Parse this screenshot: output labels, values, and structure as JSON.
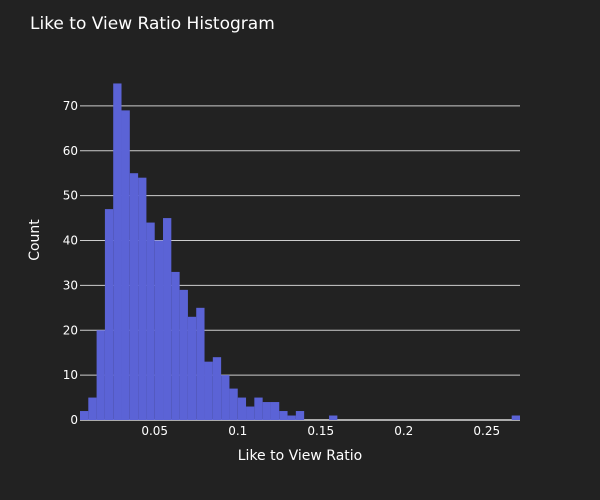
{
  "chart_data": {
    "type": "bar",
    "title": "Like to View Ratio Histogram",
    "xlabel": "Like to View Ratio",
    "ylabel": "Count",
    "bar_color": "#5b63d6",
    "background": "#222222",
    "grid": "y",
    "bin_width": 0.005,
    "xlim": [
      0.005,
      0.27
    ],
    "ylim": [
      0,
      78
    ],
    "x_ticks": [
      0.05,
      0.1,
      0.15,
      0.2,
      0.25
    ],
    "x_tick_labels": [
      "0.05",
      "0.1",
      "0.15",
      "0.2",
      "0.25"
    ],
    "y_ticks": [
      0,
      10,
      20,
      30,
      40,
      50,
      60,
      70
    ],
    "y_tick_labels": [
      "0",
      "10",
      "20",
      "30",
      "40",
      "50",
      "60",
      "70"
    ],
    "bins": [
      {
        "x": 0.005,
        "count": 2
      },
      {
        "x": 0.01,
        "count": 5
      },
      {
        "x": 0.015,
        "count": 20
      },
      {
        "x": 0.02,
        "count": 47
      },
      {
        "x": 0.025,
        "count": 75
      },
      {
        "x": 0.03,
        "count": 69
      },
      {
        "x": 0.035,
        "count": 55
      },
      {
        "x": 0.04,
        "count": 54
      },
      {
        "x": 0.045,
        "count": 44
      },
      {
        "x": 0.05,
        "count": 40
      },
      {
        "x": 0.055,
        "count": 45
      },
      {
        "x": 0.06,
        "count": 33
      },
      {
        "x": 0.065,
        "count": 29
      },
      {
        "x": 0.07,
        "count": 23
      },
      {
        "x": 0.075,
        "count": 25
      },
      {
        "x": 0.08,
        "count": 13
      },
      {
        "x": 0.085,
        "count": 14
      },
      {
        "x": 0.09,
        "count": 10
      },
      {
        "x": 0.095,
        "count": 7
      },
      {
        "x": 0.1,
        "count": 5
      },
      {
        "x": 0.105,
        "count": 3
      },
      {
        "x": 0.11,
        "count": 5
      },
      {
        "x": 0.115,
        "count": 4
      },
      {
        "x": 0.12,
        "count": 4
      },
      {
        "x": 0.125,
        "count": 2
      },
      {
        "x": 0.13,
        "count": 1
      },
      {
        "x": 0.135,
        "count": 2
      },
      {
        "x": 0.155,
        "count": 1
      },
      {
        "x": 0.265,
        "count": 1
      }
    ]
  }
}
